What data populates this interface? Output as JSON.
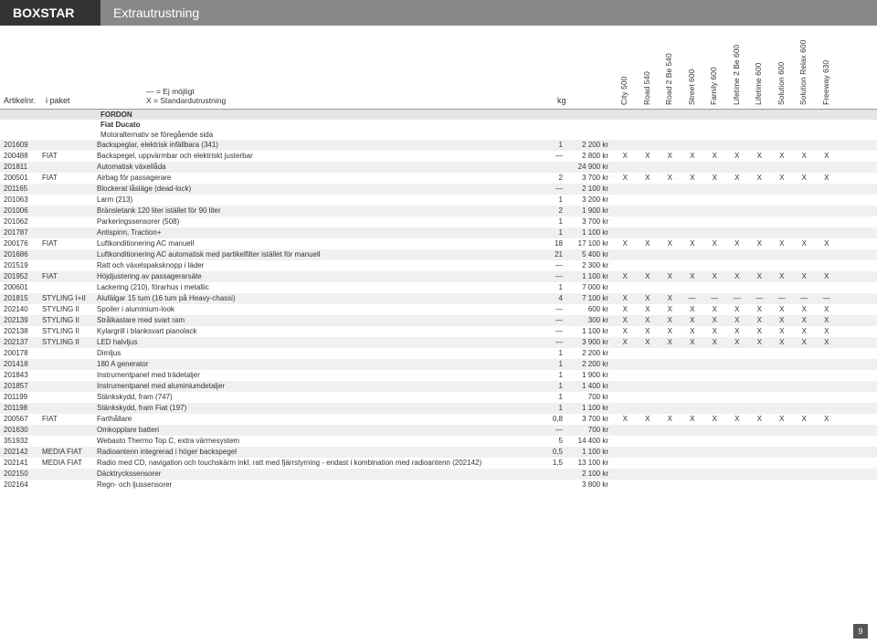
{
  "brand": "BOXSTAR",
  "title": "Extrautrustning",
  "legend": {
    "line1": "— = Ej möjligt",
    "line2": "X = Standardutrustning"
  },
  "header_cols": {
    "artikel": "Artikelnr.",
    "paket": "i paket",
    "kg": "kg"
  },
  "vertical_cols": [
    "City 500",
    "Road 540",
    "Road 2 Be 540",
    "Street 600",
    "Family 600",
    "Lifetime 2 Be 600",
    "Lifetime 600",
    "Solution 600",
    "Solution Relax 600",
    "Freeway 630"
  ],
  "sections": {
    "fordon": "FORDON",
    "fiat": "Fiat Ducato",
    "motor": "Motoralternativ se föregående sida"
  },
  "rows": [
    {
      "art": "201609",
      "pak": "",
      "desc": "Backspeglar, elektrisk infällbara (341)",
      "kg": "1",
      "price": "2 200 kr",
      "x": [
        "",
        "",
        "",
        "",
        "",
        "",
        "",
        "",
        "",
        ""
      ]
    },
    {
      "art": "200488",
      "pak": "FIAT",
      "desc": "Backspegel, uppvärmbar och elektriskt justerbar",
      "kg": "—",
      "price": "2 800 kr",
      "x": [
        "X",
        "X",
        "X",
        "X",
        "X",
        "X",
        "X",
        "X",
        "X",
        "X"
      ]
    },
    {
      "art": "201811",
      "pak": "",
      "desc": "Automatisk växellåda",
      "kg": "",
      "price": "24 900 kr",
      "x": [
        "",
        "",
        "",
        "",
        "",
        "",
        "",
        "",
        "",
        ""
      ]
    },
    {
      "art": "200501",
      "pak": "FIAT",
      "desc": "Airbag för passagerare",
      "kg": "2",
      "price": "3 700 kr",
      "x": [
        "X",
        "X",
        "X",
        "X",
        "X",
        "X",
        "X",
        "X",
        "X",
        "X"
      ]
    },
    {
      "art": "201165",
      "pak": "",
      "desc": "Blockerat låsläge (dead-lock)",
      "kg": "—",
      "price": "2 100 kr",
      "x": [
        "",
        "",
        "",
        "",
        "",
        "",
        "",
        "",
        "",
        ""
      ]
    },
    {
      "art": "201063",
      "pak": "",
      "desc": "Larm (213)",
      "kg": "1",
      "price": "3 200 kr",
      "x": [
        "",
        "",
        "",
        "",
        "",
        "",
        "",
        "",
        "",
        ""
      ]
    },
    {
      "art": "201006",
      "pak": "",
      "desc": "Bränsletank 120 liter istället för 90 liter",
      "kg": "2",
      "price": "1 900 kr",
      "x": [
        "",
        "",
        "",
        "",
        "",
        "",
        "",
        "",
        "",
        ""
      ]
    },
    {
      "art": "201062",
      "pak": "",
      "desc": "Parkeringssensorer (508)",
      "kg": "1",
      "price": "3 700 kr",
      "x": [
        "",
        "",
        "",
        "",
        "",
        "",
        "",
        "",
        "",
        ""
      ]
    },
    {
      "art": "201787",
      "pak": "",
      "desc": "Antispinn, Traction+",
      "kg": "1",
      "price": "1 100 kr",
      "x": [
        "",
        "",
        "",
        "",
        "",
        "",
        "",
        "",
        "",
        ""
      ]
    },
    {
      "art": "200176",
      "pak": "FIAT",
      "desc": "Luftkonditionering AC manuell",
      "kg": "18",
      "price": "17 100 kr",
      "x": [
        "X",
        "X",
        "X",
        "X",
        "X",
        "X",
        "X",
        "X",
        "X",
        "X"
      ]
    },
    {
      "art": "201686",
      "pak": "",
      "desc": "Luftkonditionering AC automatisk med partikelfilter istället för manuell",
      "kg": "21",
      "price": "5 400 kr",
      "x": [
        "",
        "",
        "",
        "",
        "",
        "",
        "",
        "",
        "",
        ""
      ]
    },
    {
      "art": "201519",
      "pak": "",
      "desc": "Ratt och växelspaksknopp i läder",
      "kg": "—",
      "price": "2 300 kr",
      "x": [
        "",
        "",
        "",
        "",
        "",
        "",
        "",
        "",
        "",
        ""
      ]
    },
    {
      "art": "201952",
      "pak": "FIAT",
      "desc": "Höjdjustering av passagerarsäte",
      "kg": "—",
      "price": "1 100 kr",
      "x": [
        "X",
        "X",
        "X",
        "X",
        "X",
        "X",
        "X",
        "X",
        "X",
        "X"
      ]
    },
    {
      "art": "200601",
      "pak": "",
      "desc": "Lackering (210), förarhus i metallic",
      "kg": "1",
      "price": "7 000 kr",
      "x": [
        "",
        "",
        "",
        "",
        "",
        "",
        "",
        "",
        "",
        ""
      ]
    },
    {
      "art": "201815",
      "pak": "STYLING I+II",
      "desc": "Alufälgar 15 tum (16 tum på Heavy-chassi)",
      "kg": "4",
      "price": "7 100 kr",
      "x": [
        "X",
        "X",
        "X",
        "—",
        "—",
        "—",
        "—",
        "—",
        "—",
        "—"
      ]
    },
    {
      "art": "202140",
      "pak": "STYLING II",
      "desc": "Spoiler i aluminium-look",
      "kg": "—",
      "price": "600 kr",
      "x": [
        "X",
        "X",
        "X",
        "X",
        "X",
        "X",
        "X",
        "X",
        "X",
        "X"
      ]
    },
    {
      "art": "202139",
      "pak": "STYLING II",
      "desc": "Strålkastare med svart ram",
      "kg": "—",
      "price": "300 kr",
      "x": [
        "X",
        "X",
        "X",
        "X",
        "X",
        "X",
        "X",
        "X",
        "X",
        "X"
      ]
    },
    {
      "art": "202138",
      "pak": "STYLING II",
      "desc": "Kylargrill i blanksvart pianolack",
      "kg": "—",
      "price": "1 100 kr",
      "x": [
        "X",
        "X",
        "X",
        "X",
        "X",
        "X",
        "X",
        "X",
        "X",
        "X"
      ]
    },
    {
      "art": "202137",
      "pak": "STYLING II",
      "desc": "LED halvljus",
      "kg": "—",
      "price": "3 900 kr",
      "x": [
        "X",
        "X",
        "X",
        "X",
        "X",
        "X",
        "X",
        "X",
        "X",
        "X"
      ]
    },
    {
      "art": "200178",
      "pak": "",
      "desc": "Dimljus",
      "kg": "1",
      "price": "2 200 kr",
      "x": [
        "",
        "",
        "",
        "",
        "",
        "",
        "",
        "",
        "",
        ""
      ]
    },
    {
      "art": "201418",
      "pak": "",
      "desc": "180 A generator",
      "kg": "1",
      "price": "2 200 kr",
      "x": [
        "",
        "",
        "",
        "",
        "",
        "",
        "",
        "",
        "",
        ""
      ]
    },
    {
      "art": "201843",
      "pak": "",
      "desc": "Instrumentpanel med trädetaljer",
      "kg": "1",
      "price": "1 900 kr",
      "x": [
        "",
        "",
        "",
        "",
        "",
        "",
        "",
        "",
        "",
        ""
      ]
    },
    {
      "art": "201857",
      "pak": "",
      "desc": "Instrumentpanel med aluminiumdetaljer",
      "kg": "1",
      "price": "1 400 kr",
      "x": [
        "",
        "",
        "",
        "",
        "",
        "",
        "",
        "",
        "",
        ""
      ]
    },
    {
      "art": "201199",
      "pak": "",
      "desc": "Stänkskydd, fram (747)",
      "kg": "1",
      "price": "700 kr",
      "x": [
        "",
        "",
        "",
        "",
        "",
        "",
        "",
        "",
        "",
        ""
      ]
    },
    {
      "art": "201198",
      "pak": "",
      "desc": "Stänkskydd, fram Fiat (197)",
      "kg": "1",
      "price": "1 100 kr",
      "x": [
        "",
        "",
        "",
        "",
        "",
        "",
        "",
        "",
        "",
        ""
      ]
    },
    {
      "art": "200567",
      "pak": "FIAT",
      "desc": "Farthållare",
      "kg": "0,8",
      "price": "3 700 kr",
      "x": [
        "X",
        "X",
        "X",
        "X",
        "X",
        "X",
        "X",
        "X",
        "X",
        "X"
      ]
    },
    {
      "art": "201630",
      "pak": "",
      "desc": "Omkopplare batteri",
      "kg": "—",
      "price": "700 kr",
      "x": [
        "",
        "",
        "",
        "",
        "",
        "",
        "",
        "",
        "",
        ""
      ]
    },
    {
      "art": "351932",
      "pak": "",
      "desc": "Webasto Thermo Top C, extra värmesystem",
      "kg": "5",
      "price": "14 400 kr",
      "x": [
        "",
        "",
        "",
        "",
        "",
        "",
        "",
        "",
        "",
        ""
      ]
    },
    {
      "art": "202142",
      "pak": "MEDIA FIAT",
      "desc": "Radioantenn integrerad i höger backspegel",
      "kg": "0,5",
      "price": "1 100 kr",
      "x": [
        "",
        "",
        "",
        "",
        "",
        "",
        "",
        "",
        "",
        ""
      ]
    },
    {
      "art": "202141",
      "pak": "MEDIA FIAT",
      "desc": "Radio med CD, navigation och touchskärm inkl. ratt med fjärrstyrning - endast i kombination med radioantenn (202142)",
      "kg": "1,5",
      "price": "13 100 kr",
      "x": [
        "",
        "",
        "",
        "",
        "",
        "",
        "",
        "",
        "",
        ""
      ]
    },
    {
      "art": "202150",
      "pak": "",
      "desc": "Däcktryckssensorer",
      "kg": "",
      "price": "2 100 kr",
      "x": [
        "",
        "",
        "",
        "",
        "",
        "",
        "",
        "",
        "",
        ""
      ]
    },
    {
      "art": "202164",
      "pak": "",
      "desc": "Regn- och ljussensorer",
      "kg": "",
      "price": "3 800 kr",
      "x": [
        "",
        "",
        "",
        "",
        "",
        "",
        "",
        "",
        "",
        ""
      ]
    }
  ],
  "page": "9",
  "colors": {
    "brand_bg": "#333333",
    "title_bg": "#888888",
    "alt_row": "#f0f0f0",
    "section_bg": "#e5e5e5"
  }
}
